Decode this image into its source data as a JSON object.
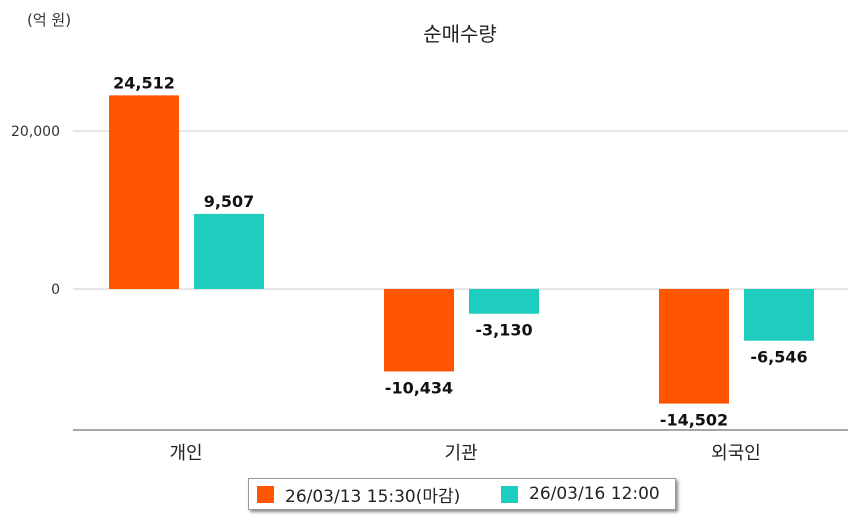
{
  "chart_data": {
    "type": "bar",
    "title": "순매수량",
    "unit_label": "(억 원)",
    "categories": [
      "개인",
      "기관",
      "외국인"
    ],
    "series": [
      {
        "name": "26/03/13 15:30(마감)",
        "color": "#ff5500",
        "values": [
          24512,
          -10434,
          -14502
        ],
        "labels": [
          "24,512",
          "-10,434",
          "-14,502"
        ]
      },
      {
        "name": "26/03/16 12:00",
        "color": "#1ecdbd",
        "values": [
          9507,
          -3130,
          -6546
        ],
        "labels": [
          "9,507",
          "-3,130",
          "-6,546"
        ]
      }
    ],
    "y_ticks": [
      {
        "value": 0,
        "label": "0"
      },
      {
        "value": 20000,
        "label": "20,000"
      }
    ],
    "ylim": [
      -18000,
      30000
    ],
    "grid": true,
    "legend_position": "bottom"
  }
}
